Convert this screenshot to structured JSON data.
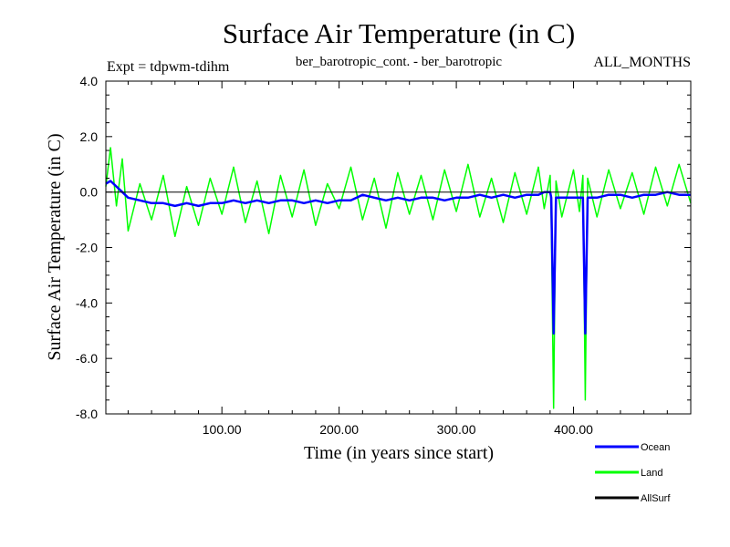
{
  "chart_data": {
    "type": "line",
    "title": "Surface Air Temperature (in C)",
    "experiment_label": "Expt = tdpwm-tdihm",
    "subtitle": "ber_barotropic_cont. - ber_barotropic",
    "months_label": "ALL_MONTHS",
    "xlabel": "Time (in years since start)",
    "ylabel": "Surface Air Temperature (in C)",
    "xlim": [
      1,
      500
    ],
    "ylim": [
      -8.0,
      4.0
    ],
    "x_ticks": [
      {
        "value": 100,
        "label": "100.00"
      },
      {
        "value": 200,
        "label": "200.00"
      },
      {
        "value": 300,
        "label": "300.00"
      },
      {
        "value": 400,
        "label": "400.00"
      }
    ],
    "y_ticks": [
      {
        "value": 4,
        "label": "4.0"
      },
      {
        "value": 2,
        "label": "2.0"
      },
      {
        "value": 0,
        "label": "0.0"
      },
      {
        "value": -2,
        "label": "-2.0"
      },
      {
        "value": -4,
        "label": "-4.0"
      },
      {
        "value": -6,
        "label": "-6.0"
      },
      {
        "value": -8,
        "label": "-8.0"
      }
    ],
    "grid": false,
    "legend_position": "bottom-right",
    "series": [
      {
        "name": "Ocean",
        "color": "#0000ff",
        "x": [
          1,
          5,
          10,
          15,
          20,
          30,
          40,
          50,
          60,
          70,
          80,
          90,
          100,
          110,
          120,
          130,
          140,
          150,
          160,
          170,
          180,
          190,
          200,
          210,
          220,
          230,
          240,
          250,
          260,
          270,
          280,
          290,
          300,
          310,
          320,
          330,
          340,
          350,
          360,
          370,
          375,
          380,
          381,
          383,
          385,
          390,
          400,
          405,
          408,
          410,
          412,
          420,
          430,
          440,
          450,
          460,
          470,
          480,
          490,
          500
        ],
        "values": [
          0.3,
          0.4,
          0.2,
          0.0,
          -0.2,
          -0.3,
          -0.4,
          -0.4,
          -0.5,
          -0.4,
          -0.5,
          -0.4,
          -0.4,
          -0.3,
          -0.4,
          -0.3,
          -0.4,
          -0.3,
          -0.3,
          -0.4,
          -0.3,
          -0.4,
          -0.3,
          -0.3,
          -0.1,
          -0.2,
          -0.3,
          -0.2,
          -0.3,
          -0.2,
          -0.2,
          -0.3,
          -0.2,
          -0.2,
          -0.1,
          -0.2,
          -0.1,
          -0.2,
          -0.1,
          -0.1,
          0.0,
          0.0,
          -0.2,
          -5.1,
          -0.2,
          -0.2,
          -0.2,
          -0.2,
          -0.2,
          -5.1,
          -0.2,
          -0.2,
          -0.1,
          -0.1,
          -0.2,
          -0.1,
          -0.1,
          0.0,
          -0.1,
          -0.1
        ]
      },
      {
        "name": "Land",
        "color": "#00ff00",
        "x": [
          1,
          5,
          10,
          15,
          20,
          30,
          40,
          50,
          60,
          70,
          80,
          90,
          100,
          110,
          120,
          130,
          140,
          150,
          160,
          170,
          180,
          190,
          200,
          210,
          220,
          230,
          240,
          250,
          260,
          270,
          280,
          290,
          300,
          310,
          320,
          330,
          340,
          350,
          360,
          370,
          375,
          380,
          381,
          383,
          385,
          390,
          400,
          405,
          408,
          410,
          412,
          420,
          430,
          440,
          450,
          460,
          470,
          480,
          490,
          500
        ],
        "values": [
          0.2,
          1.6,
          -0.5,
          1.2,
          -1.4,
          0.3,
          -1.0,
          0.6,
          -1.6,
          0.2,
          -1.2,
          0.5,
          -0.8,
          0.9,
          -1.1,
          0.4,
          -1.5,
          0.6,
          -0.9,
          0.8,
          -1.2,
          0.3,
          -0.6,
          0.9,
          -1.0,
          0.5,
          -1.3,
          0.7,
          -0.8,
          0.6,
          -1.0,
          0.8,
          -0.7,
          1.0,
          -0.9,
          0.5,
          -1.1,
          0.7,
          -0.8,
          0.9,
          -0.6,
          0.6,
          -1.0,
          -7.8,
          0.4,
          -0.9,
          0.8,
          -0.7,
          0.6,
          -7.5,
          0.5,
          -0.9,
          0.8,
          -0.6,
          0.7,
          -0.8,
          0.9,
          -0.5,
          1.0,
          -0.4
        ]
      },
      {
        "name": "AllSurf",
        "color": "#000000",
        "x": [
          1,
          500
        ],
        "values": [
          0.0,
          0.0
        ]
      }
    ]
  }
}
